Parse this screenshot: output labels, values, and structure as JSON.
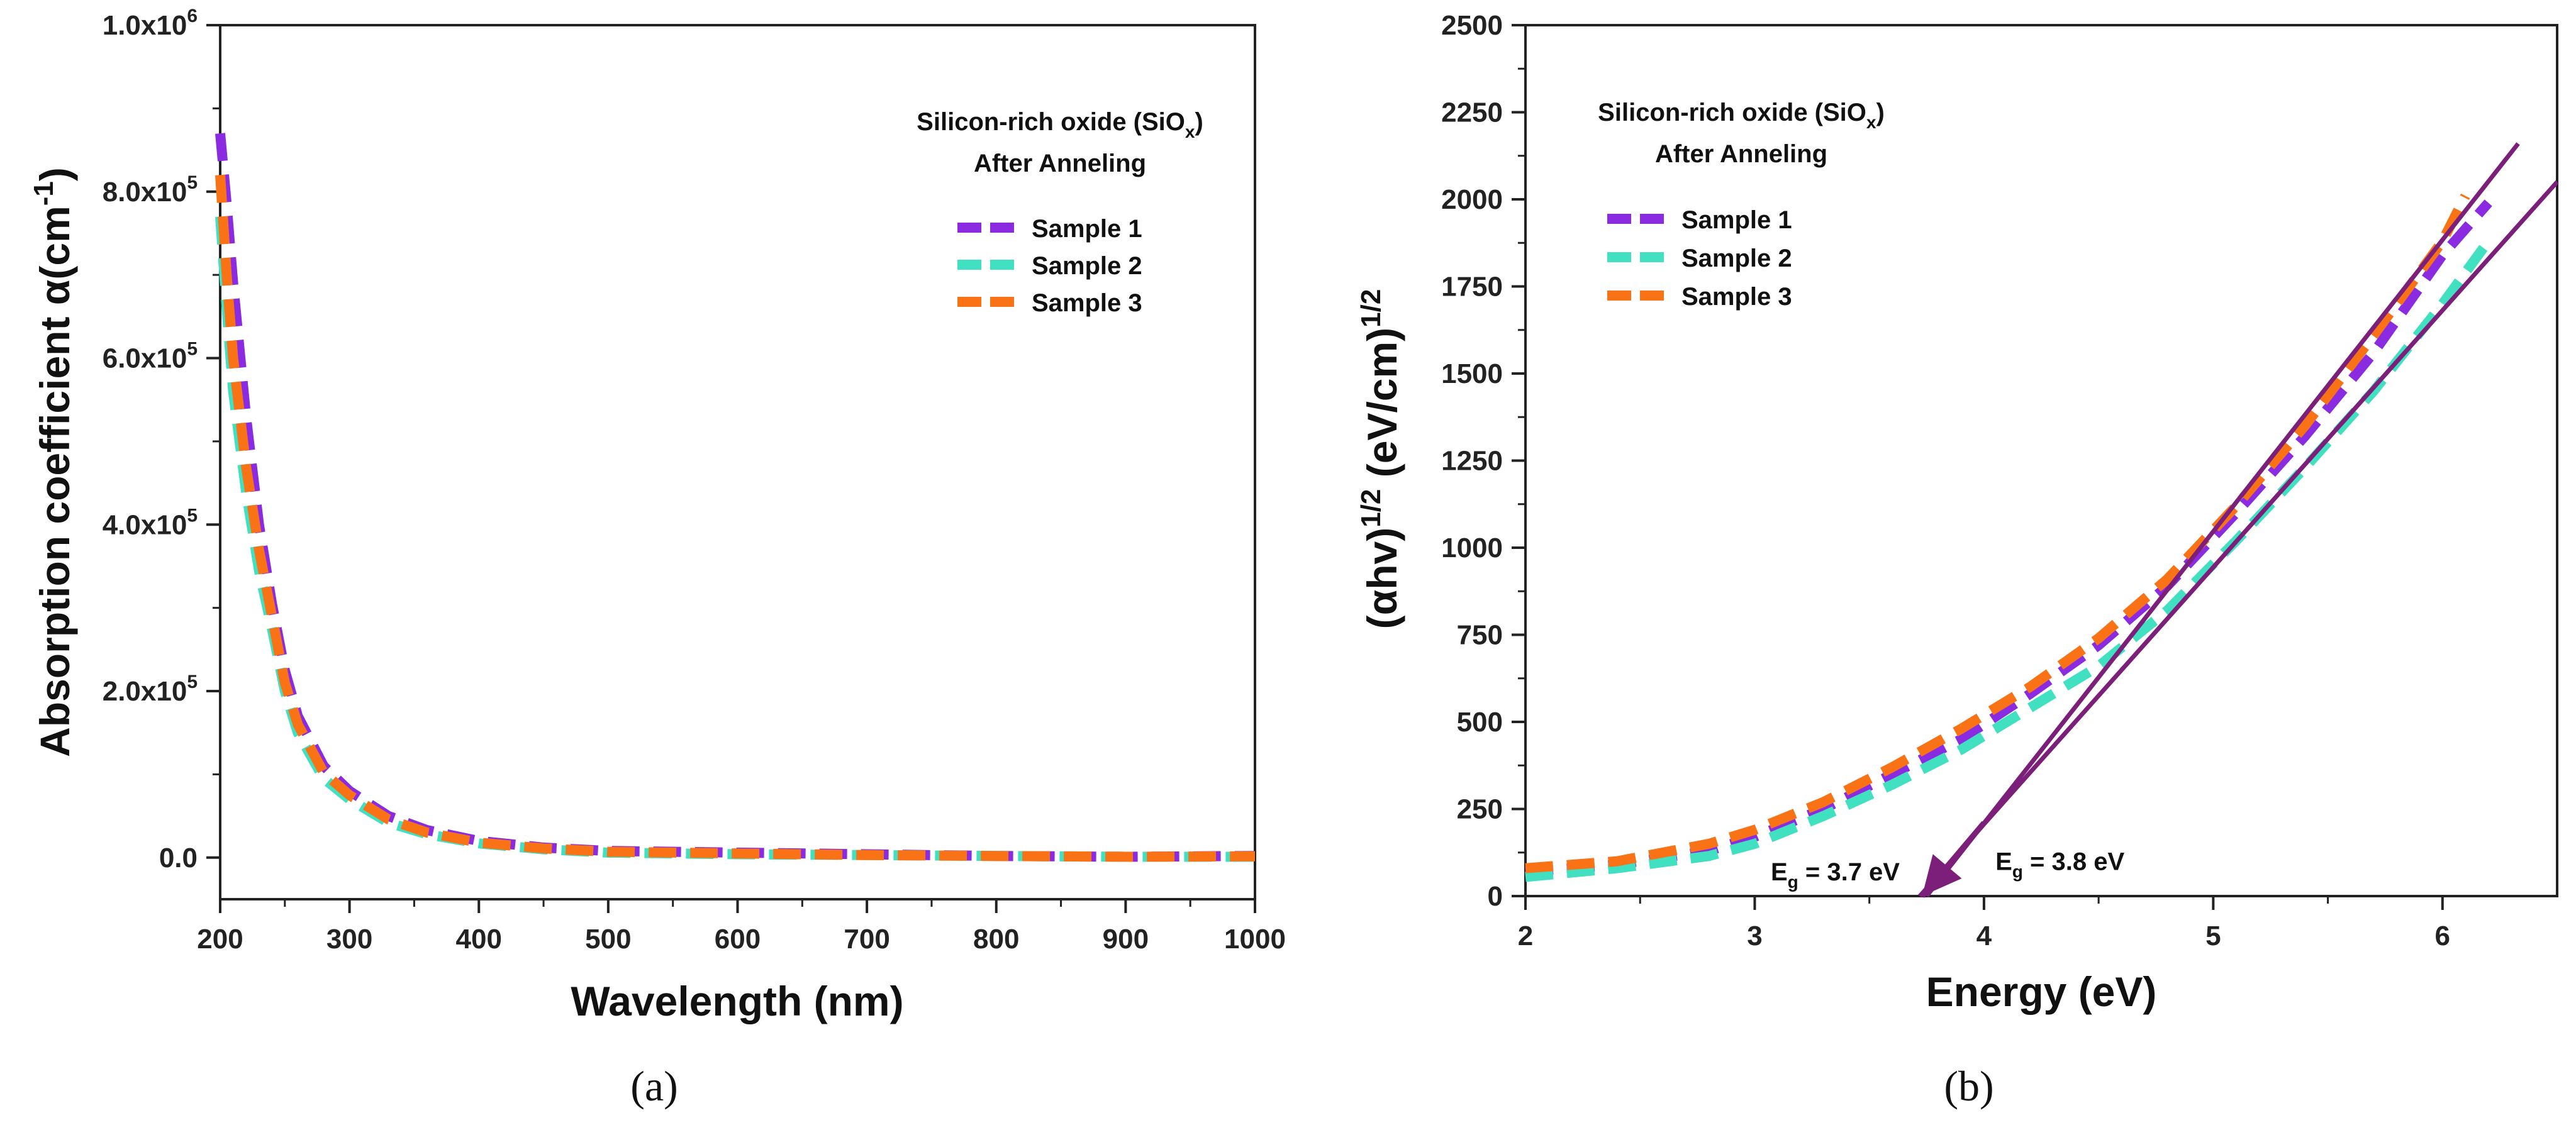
{
  "colors": {
    "sample1": "#8A2BE2",
    "sample2": "#40E0C0",
    "sample3": "#F97316",
    "fit_lines": "#7B1F7A",
    "axis": "#222222"
  },
  "chart_data": [
    {
      "id": "a",
      "type": "line",
      "caption": "(a)",
      "ylabel": "Absorption coefficient α(cm",
      "ylabel_sup": "-1",
      "ylabel_tail": ")",
      "xlabel": "Wavelength (nm)",
      "xlim": [
        200,
        1000
      ],
      "ylim": [
        -50000,
        1000000
      ],
      "x_ticks": [
        200,
        300,
        400,
        500,
        600,
        700,
        800,
        900,
        1000
      ],
      "x_tick_labels": [
        "200",
        "300",
        "400",
        "500",
        "600",
        "700",
        "800",
        "900",
        "1000"
      ],
      "y_ticks": [
        0,
        200000,
        400000,
        600000,
        800000,
        1000000
      ],
      "y_tick_labels": [
        {
          "base": "0.0",
          "exp": ""
        },
        {
          "base": "2.0x10",
          "exp": "5"
        },
        {
          "base": "4.0x10",
          "exp": "5"
        },
        {
          "base": "6.0x10",
          "exp": "5"
        },
        {
          "base": "8.0x10",
          "exp": "5"
        },
        {
          "base": "1.0x10",
          "exp": "6"
        }
      ],
      "legend": {
        "title_line1": "Silicon-rich oxide (SiO",
        "title_sub": "x",
        "title_line1_tail": ")",
        "title_line2": "After Anneling",
        "entries": [
          "Sample 1",
          "Sample 2",
          "Sample 3"
        ]
      },
      "series": [
        {
          "name": "Sample 1",
          "color": "#8A2BE2",
          "x": [
            200,
            205,
            210,
            220,
            230,
            240,
            250,
            260,
            280,
            300,
            330,
            360,
            400,
            450,
            500,
            600,
            700,
            800,
            900,
            1000
          ],
          "y": [
            870000,
            785000,
            690000,
            530000,
            400000,
            305000,
            225000,
            170000,
            110000,
            80000,
            50000,
            33000,
            20000,
            12000,
            8000,
            6000,
            4000,
            2000,
            1000,
            2000
          ]
        },
        {
          "name": "Sample 2",
          "color": "#40E0C0",
          "x": [
            200,
            205,
            210,
            220,
            230,
            240,
            250,
            260,
            280,
            300,
            330,
            360,
            400,
            450,
            500,
            600,
            700,
            800,
            900,
            1000
          ],
          "y": [
            770000,
            660000,
            560000,
            440000,
            345000,
            275000,
            200000,
            150000,
            95000,
            70000,
            42000,
            28000,
            17000,
            10000,
            6000,
            4000,
            3000,
            2000,
            1000,
            1000
          ]
        },
        {
          "name": "Sample 3",
          "color": "#F97316",
          "x": [
            200,
            205,
            210,
            220,
            230,
            240,
            250,
            260,
            280,
            300,
            330,
            360,
            400,
            450,
            500,
            600,
            700,
            800,
            900,
            1000
          ],
          "y": [
            820000,
            700000,
            600000,
            470000,
            370000,
            290000,
            210000,
            160000,
            102000,
            75000,
            46000,
            30000,
            18000,
            11000,
            7000,
            5000,
            3000,
            2000,
            1000,
            1500
          ]
        }
      ]
    },
    {
      "id": "b",
      "type": "line",
      "caption": "(b)",
      "ylabel": "(αhv)",
      "ylabel_sup1": "1/2",
      "ylabel_mid": " (eV/cm)",
      "ylabel_sup2": "1/2",
      "xlabel": "Energy (eV)",
      "xlim": [
        2,
        6.5
      ],
      "ylim": [
        0,
        2500
      ],
      "x_ticks": [
        2,
        3,
        4,
        5,
        6
      ],
      "x_tick_labels": [
        "2",
        "3",
        "4",
        "5",
        "6"
      ],
      "y_ticks": [
        0,
        250,
        500,
        750,
        1000,
        1250,
        1500,
        1750,
        2000,
        2250,
        2500
      ],
      "y_tick_labels": [
        "0",
        "250",
        "500",
        "750",
        "1000",
        "1250",
        "1500",
        "1750",
        "2000",
        "2250",
        "2500"
      ],
      "legend": {
        "title_line1": "Silicon-rich oxide (SiO",
        "title_sub": "x",
        "title_line1_tail": ")",
        "title_line2": "After Anneling",
        "entries": [
          "Sample 1",
          "Sample 2",
          "Sample 3"
        ]
      },
      "annotations": [
        {
          "label": "E",
          "sub": "g",
          "tail": " = 3.7 eV",
          "x": 3.07,
          "y": 45
        },
        {
          "label": "E",
          "sub": "g",
          "tail": " = 3.8 eV",
          "x": 4.05,
          "y": 75
        }
      ],
      "fit_lines": [
        {
          "x": [
            3.75,
            6.33
          ],
          "y": [
            0,
            2160
          ]
        },
        {
          "x": [
            3.72,
            6.5
          ],
          "y": [
            0,
            2050
          ]
        }
      ],
      "arrow": {
        "x_from": 4.0,
        "y_from": 210,
        "x_to": 3.73,
        "y_to": 0
      },
      "series": [
        {
          "name": "Sample 1",
          "color": "#8A2BE2",
          "x": [
            2.0,
            2.4,
            2.8,
            3.0,
            3.3,
            3.6,
            3.9,
            4.2,
            4.5,
            4.8,
            5.1,
            5.4,
            5.7,
            6.0,
            6.2
          ],
          "y": [
            70,
            90,
            130,
            170,
            250,
            350,
            450,
            580,
            720,
            890,
            1100,
            1320,
            1560,
            1840,
            1990
          ]
        },
        {
          "name": "Sample 2",
          "color": "#40E0C0",
          "x": [
            2.0,
            2.4,
            2.8,
            3.0,
            3.3,
            3.6,
            3.9,
            4.2,
            4.5,
            4.8,
            5.1,
            5.4,
            5.7,
            6.0,
            6.2
          ],
          "y": [
            55,
            80,
            115,
            150,
            230,
            320,
            420,
            540,
            660,
            820,
            1020,
            1230,
            1450,
            1700,
            1880
          ]
        },
        {
          "name": "Sample 3",
          "color": "#F97316",
          "x": [
            2.0,
            2.4,
            2.8,
            3.0,
            3.3,
            3.6,
            3.9,
            4.2,
            4.5,
            4.8,
            5.1,
            5.4,
            5.7,
            6.0,
            6.1
          ],
          "y": [
            80,
            100,
            150,
            190,
            270,
            370,
            480,
            600,
            740,
            910,
            1120,
            1350,
            1610,
            1880,
            2010
          ]
        }
      ]
    }
  ]
}
